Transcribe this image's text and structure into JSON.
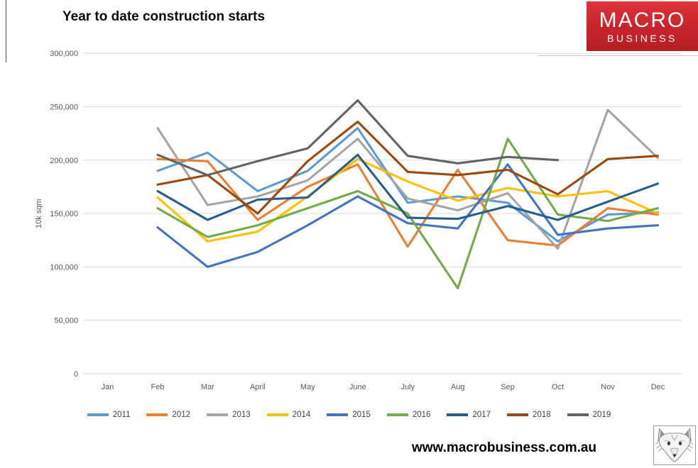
{
  "header": {
    "title": "Year to date construction starts",
    "logo": {
      "line1": "MACRO",
      "line2": "BUSINESS",
      "bg": "#c6242a",
      "text_color": "#ffffff"
    }
  },
  "footer": {
    "url": "www.macrobusiness.com.au",
    "logo_icon": "fox-sketch-icon"
  },
  "chart_data": {
    "type": "line",
    "title": "Year to date construction starts",
    "xlabel": "",
    "ylabel": "10k sqm",
    "categories": [
      "Jan",
      "Feb",
      "Mar",
      "April",
      "May",
      "June",
      "July",
      "Aug",
      "Sep",
      "Oct",
      "Nov",
      "Dec"
    ],
    "y_ticks": [
      0,
      50000,
      100000,
      150000,
      200000,
      250000,
      300000
    ],
    "ylim": [
      0,
      300000
    ],
    "grid": true,
    "legend_position": "bottom",
    "tick_color": "#595959",
    "gridline_color": "#d9d9d9",
    "series": [
      {
        "name": "2011",
        "color": "#5B9BD5",
        "values": [
          null,
          190000,
          207000,
          171000,
          190000,
          230000,
          160000,
          166000,
          160000,
          124000,
          149000,
          151000
        ]
      },
      {
        "name": "2012",
        "color": "#ED7D31",
        "values": [
          null,
          201000,
          199000,
          144000,
          175000,
          196000,
          119000,
          191000,
          125000,
          120000,
          155000,
          149000
        ]
      },
      {
        "name": "2013",
        "color": "#A5A5A5",
        "values": [
          null,
          230000,
          158000,
          166000,
          181000,
          220000,
          164000,
          153000,
          169000,
          117000,
          247000,
          202000
        ]
      },
      {
        "name": "2014",
        "color": "#FFC000",
        "values": [
          null,
          165000,
          124000,
          133000,
          166000,
          201000,
          180000,
          162000,
          174000,
          166000,
          171000,
          150000
        ]
      },
      {
        "name": "2015",
        "color": "#4472C4",
        "values": [
          null,
          137000,
          100000,
          114000,
          139000,
          166000,
          141000,
          136000,
          196000,
          130000,
          136000,
          139000
        ]
      },
      {
        "name": "2016",
        "color": "#70AD47",
        "values": [
          null,
          155000,
          128000,
          139000,
          155000,
          171000,
          150000,
          80000,
          220000,
          149000,
          143000,
          155000
        ]
      },
      {
        "name": "2017",
        "color": "#255E91",
        "values": [
          null,
          171000,
          144000,
          163000,
          165000,
          205000,
          146000,
          145000,
          157000,
          144000,
          161000,
          178000
        ]
      },
      {
        "name": "2018",
        "color": "#9E480E",
        "values": [
          null,
          177000,
          186000,
          150000,
          199000,
          236000,
          189000,
          186000,
          191000,
          168000,
          201000,
          204000
        ]
      },
      {
        "name": "2019",
        "color": "#636363",
        "values": [
          null,
          205000,
          186000,
          199000,
          211000,
          256000,
          204000,
          197000,
          203000,
          200000,
          null,
          null
        ]
      }
    ]
  }
}
